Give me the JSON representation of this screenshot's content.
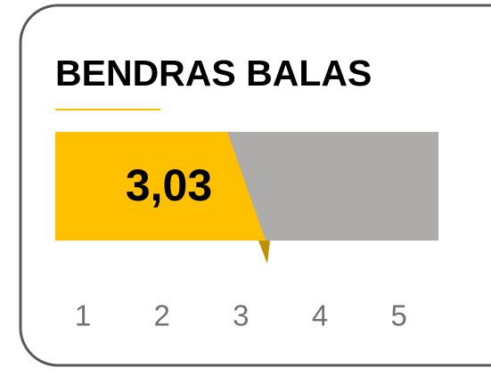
{
  "chart_data": {
    "type": "gauge-bar",
    "title": "BENDRAS BALAS",
    "values": [
      3.03
    ],
    "value_labels": [
      "3,03"
    ],
    "xlim": [
      0.65,
      5.5
    ],
    "xticks": [
      1,
      2,
      3,
      4,
      5
    ],
    "color": "#ffc000",
    "track_color": "#aeabab",
    "pointer_color": "#bf9000"
  }
}
